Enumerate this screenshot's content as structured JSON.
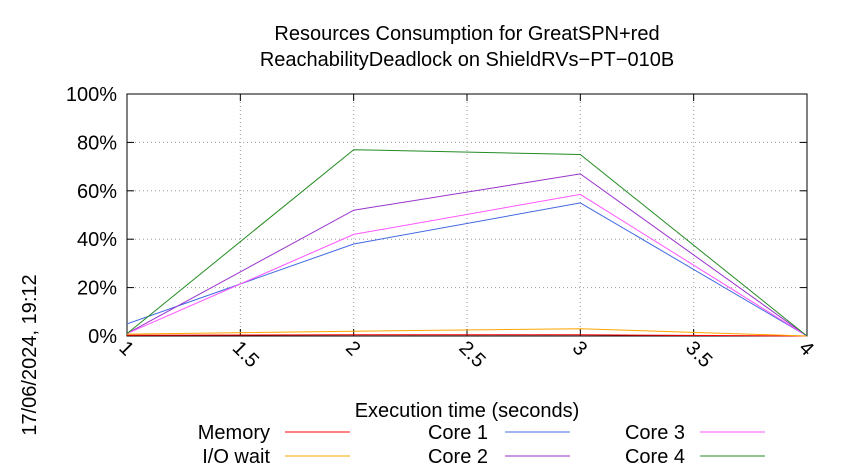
{
  "side_label": "17/06/2024, 19:12",
  "chart_data": {
    "type": "line",
    "title": "Resources Consumption for GreatSPN+red",
    "subtitle": "ReachabilityDeadlock on ShieldRVs−PT−010B",
    "xlabel": "Execution time (seconds)",
    "ylabel": "",
    "xlim": [
      1,
      4
    ],
    "ylim": [
      0,
      100
    ],
    "x_ticks": [
      "1",
      "1.5",
      "2",
      "2.5",
      "3",
      "3.5",
      "4"
    ],
    "x_tick_values": [
      1,
      1.5,
      2,
      2.5,
      3,
      3.5,
      4
    ],
    "y_ticks": [
      "0%",
      "20%",
      "40%",
      "60%",
      "80%",
      "100%"
    ],
    "y_tick_values": [
      0,
      20,
      40,
      60,
      80,
      100
    ],
    "grid": true,
    "legend_position": "bottom",
    "x": [
      1,
      2,
      3,
      4
    ],
    "series": [
      {
        "name": "Memory",
        "color": "#ff0000",
        "values": [
          0.3,
          0.5,
          0.5,
          0
        ]
      },
      {
        "name": "I/O wait",
        "color": "#ffa500",
        "values": [
          0.8,
          2.0,
          3.0,
          0
        ]
      },
      {
        "name": "Core 1",
        "color": "#4169e1",
        "values": [
          5,
          38,
          55,
          0
        ]
      },
      {
        "name": "Core 2",
        "color": "#9932cc",
        "values": [
          1,
          52,
          67,
          0
        ]
      },
      {
        "name": "Core 3",
        "color": "#ff55ff",
        "values": [
          1,
          42,
          58.5,
          0
        ]
      },
      {
        "name": "Core 4",
        "color": "#228b22",
        "values": [
          1,
          77,
          75,
          0
        ]
      }
    ]
  }
}
